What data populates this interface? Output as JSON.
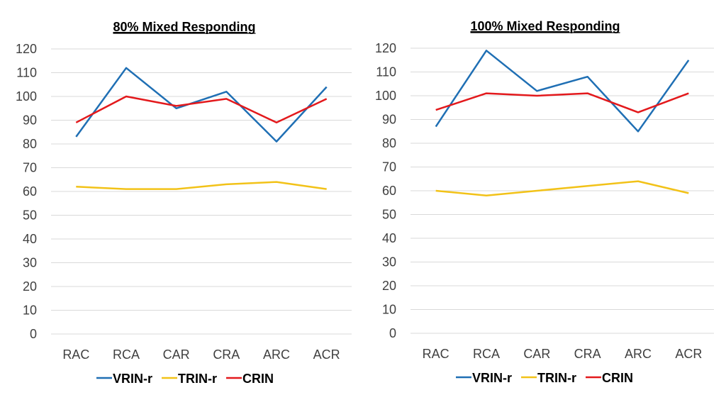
{
  "chart_data": [
    {
      "type": "line",
      "title": "80% Mixed Responding",
      "categories": [
        "RAC",
        "RCA",
        "CAR",
        "CRA",
        "ARC",
        "ACR"
      ],
      "ylim": [
        0,
        120
      ],
      "yticks": [
        0,
        10,
        20,
        30,
        40,
        50,
        60,
        70,
        80,
        90,
        100,
        110,
        120
      ],
      "grid": true,
      "legend_position": "bottom",
      "series": [
        {
          "name": "VRIN-r",
          "color": "#1f6fb4",
          "values": [
            83,
            112,
            95,
            102,
            81,
            104
          ]
        },
        {
          "name": "TRIN-r",
          "color": "#f2c218",
          "values": [
            62,
            61,
            61,
            63,
            64,
            61
          ]
        },
        {
          "name": "CRIN",
          "color": "#e3191c",
          "values": [
            89,
            100,
            96,
            99,
            89,
            99
          ]
        }
      ]
    },
    {
      "type": "line",
      "title": "100% Mixed Responding",
      "categories": [
        "RAC",
        "RCA",
        "CAR",
        "CRA",
        "ARC",
        "ACR"
      ],
      "ylim": [
        0,
        120
      ],
      "yticks": [
        0,
        10,
        20,
        30,
        40,
        50,
        60,
        70,
        80,
        90,
        100,
        110,
        120
      ],
      "grid": true,
      "legend_position": "bottom",
      "series": [
        {
          "name": "VRIN-r",
          "color": "#1f6fb4",
          "values": [
            87,
            119,
            102,
            108,
            85,
            115
          ]
        },
        {
          "name": "TRIN-r",
          "color": "#f2c218",
          "values": [
            60,
            58,
            60,
            62,
            64,
            59
          ]
        },
        {
          "name": "CRIN",
          "color": "#e3191c",
          "values": [
            94,
            101,
            100,
            101,
            93,
            101
          ]
        }
      ]
    }
  ]
}
